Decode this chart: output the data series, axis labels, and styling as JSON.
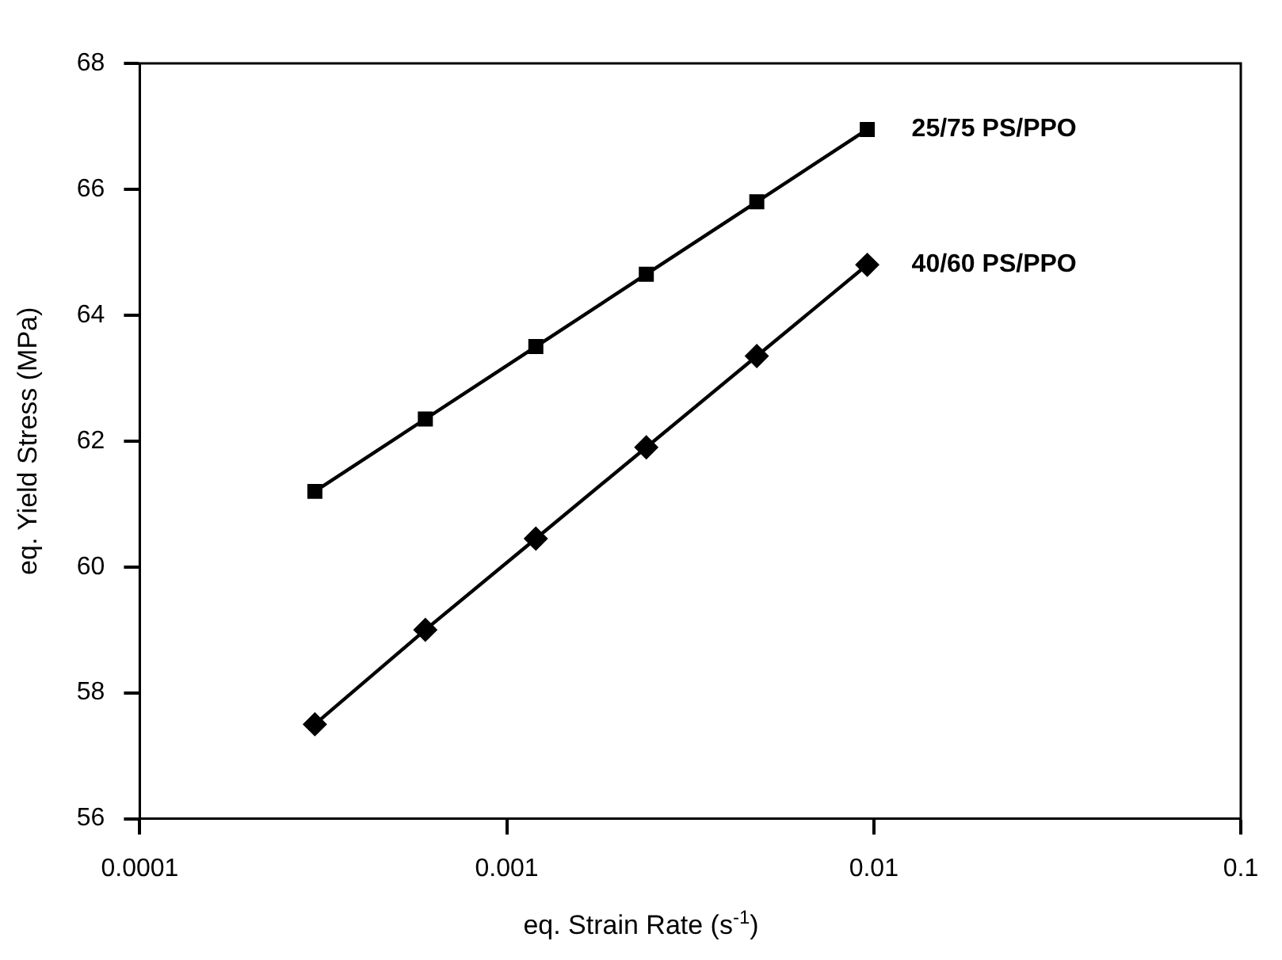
{
  "chart_data": {
    "type": "line",
    "xlabel": "eq. Strain Rate (s$^{-1}$)",
    "ylabel": "eq. Yield Stress (MPa)",
    "log": "x",
    "xlim": [
      0.0001,
      0.1
    ],
    "xticks": [
      0.0001,
      0.001,
      0.01,
      0.1
    ],
    "ylim": [
      56,
      68
    ],
    "yticks": [
      56,
      58,
      60,
      62,
      64,
      66,
      68
    ],
    "grid": false,
    "legend": "top right",
    "line_style": "solid",
    "x": [
      0.0003,
      0.0006,
      0.0012,
      0.0024,
      0.0048,
      0.0096
    ],
    "series": [
      {
        "name": "25/75 PS/PPO",
        "color": "#000000",
        "marker": "square",
        "values": [
          61.2,
          62.35,
          63.5,
          64.65,
          65.8,
          66.95
        ]
      },
      {
        "name": "40/60 PS/PPO",
        "color": "#000000",
        "marker": "diamond",
        "values": [
          57.5,
          59.0,
          60.45,
          61.9,
          63.35,
          64.8
        ]
      }
    ]
  }
}
